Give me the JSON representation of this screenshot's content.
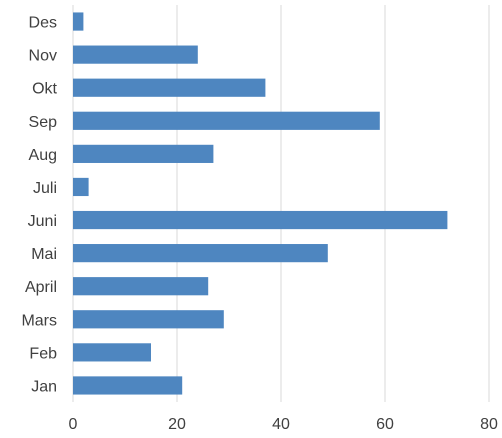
{
  "chart_data": {
    "type": "bar",
    "orientation": "horizontal",
    "categories": [
      "Jan",
      "Feb",
      "Mars",
      "April",
      "Mai",
      "Juni",
      "Juli",
      "Aug",
      "Sep",
      "Okt",
      "Nov",
      "Des"
    ],
    "values": [
      21,
      15,
      29,
      26,
      49,
      72,
      3,
      27,
      59,
      37,
      24,
      2
    ],
    "xlim": [
      0,
      80
    ],
    "x_ticks": [
      "0",
      "20",
      "40",
      "60",
      "80"
    ],
    "grid": "vertical",
    "legend": "none",
    "bar_color": "#4E86C0",
    "grid_color": "#D9D9D9"
  }
}
